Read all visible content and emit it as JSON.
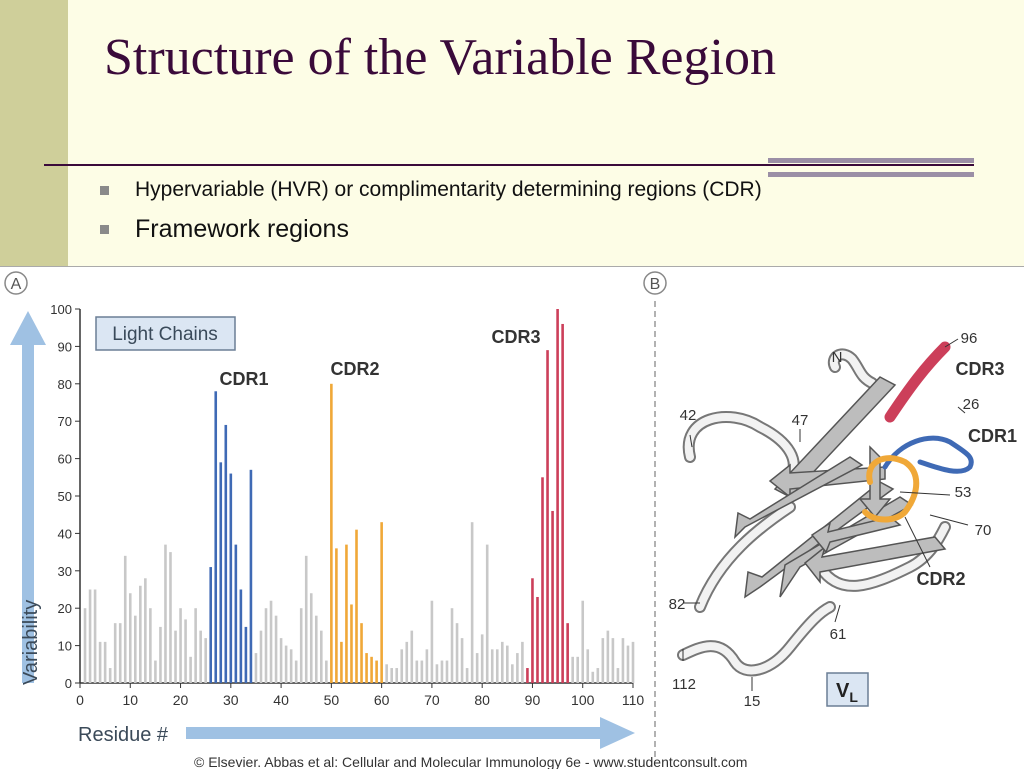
{
  "slide": {
    "title": "Structure of the Variable Region",
    "bullets": [
      "Hypervariable (HVR) or complimentarity determining regions (CDR)",
      "Framework regions"
    ]
  },
  "figure": {
    "panel_a_label": "A",
    "panel_b_label": "B",
    "box_label": "Light Chains",
    "region_labels": {
      "cdr1": "CDR1",
      "cdr2": "CDR2",
      "cdr3": "CDR3"
    },
    "struct_labels": {
      "n": "N",
      "n96": "96",
      "cdr3": "CDR3",
      "n26": "26",
      "cdr1": "CDR1",
      "n42": "42",
      "n47": "47",
      "n53": "53",
      "n70": "70",
      "cdr2": "CDR2",
      "n82": "82",
      "n61": "61",
      "n112": "112",
      "n15": "15",
      "vl_main": "V",
      "vl_sub": "L"
    },
    "credit": "© Elsevier. Abbas et al: Cellular and Molecular Immunology 6e - www.studentconsult.com"
  },
  "colors": {
    "framework": "#c8c8c8",
    "cdr1": "#3f6ab5",
    "cdr2": "#f0a838",
    "cdr3": "#cc3f5a",
    "arrow": "#9fc1e3"
  },
  "chart_data": {
    "type": "bar",
    "title": "Light Chains",
    "xlabel": "Residue #",
    "ylabel": "Variability",
    "xlim": [
      0,
      110
    ],
    "ylim": [
      0,
      100
    ],
    "xticks": [
      0,
      10,
      20,
      30,
      40,
      50,
      60,
      70,
      80,
      90,
      100,
      110
    ],
    "yticks": [
      0,
      10,
      20,
      30,
      40,
      50,
      60,
      70,
      80,
      90,
      100
    ],
    "x": [
      1,
      2,
      3,
      4,
      5,
      6,
      7,
      8,
      9,
      10,
      11,
      12,
      13,
      14,
      15,
      16,
      17,
      18,
      19,
      20,
      21,
      22,
      23,
      24,
      25,
      26,
      27,
      28,
      29,
      30,
      31,
      32,
      33,
      34,
      35,
      36,
      37,
      38,
      39,
      40,
      41,
      42,
      43,
      44,
      45,
      46,
      47,
      48,
      49,
      50,
      51,
      52,
      53,
      54,
      55,
      56,
      57,
      58,
      59,
      60,
      61,
      62,
      63,
      64,
      65,
      66,
      67,
      68,
      69,
      70,
      71,
      72,
      73,
      74,
      75,
      76,
      77,
      78,
      79,
      80,
      81,
      82,
      83,
      84,
      85,
      86,
      87,
      88,
      89,
      90,
      91,
      92,
      93,
      94,
      95,
      96,
      97,
      98,
      99,
      100,
      101,
      102,
      103,
      104,
      105,
      106,
      107,
      108,
      109,
      110
    ],
    "values": [
      20,
      25,
      25,
      11,
      11,
      4,
      16,
      16,
      34,
      24,
      18,
      26,
      28,
      20,
      6,
      15,
      37,
      35,
      14,
      20,
      17,
      7,
      20,
      14,
      12,
      31,
      78,
      59,
      69,
      56,
      37,
      25,
      15,
      57,
      8,
      14,
      20,
      22,
      18,
      12,
      10,
      9,
      6,
      20,
      34,
      24,
      18,
      14,
      6,
      80,
      36,
      11,
      37,
      21,
      41,
      16,
      8,
      7,
      6,
      43,
      5,
      4,
      4,
      9,
      11,
      14,
      6,
      6,
      9,
      22,
      5,
      6,
      6,
      20,
      16,
      12,
      4,
      43,
      8,
      13,
      37,
      9,
      9,
      11,
      10,
      5,
      8,
      11,
      4,
      28,
      23,
      55,
      89,
      46,
      100,
      96,
      16,
      7,
      7,
      22,
      9,
      3,
      4,
      12,
      14,
      12,
      4,
      12,
      10,
      11
    ],
    "series_groups": [
      {
        "name": "CDR1",
        "from": 26,
        "to": 34
      },
      {
        "name": "CDR2",
        "from": 50,
        "to": 60
      },
      {
        "name": "CDR3",
        "from": 89,
        "to": 97
      }
    ]
  }
}
